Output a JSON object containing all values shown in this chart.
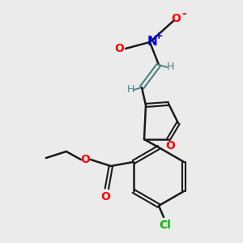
{
  "background_color": "#ebebeb",
  "bond_color": "#1a1a1a",
  "atom_colors": {
    "O": "#ff0000",
    "N": "#0000cc",
    "Cl": "#00bb00",
    "vinyl": "#4a8080"
  },
  "figsize": [
    3.0,
    3.0
  ],
  "dpi": 100
}
